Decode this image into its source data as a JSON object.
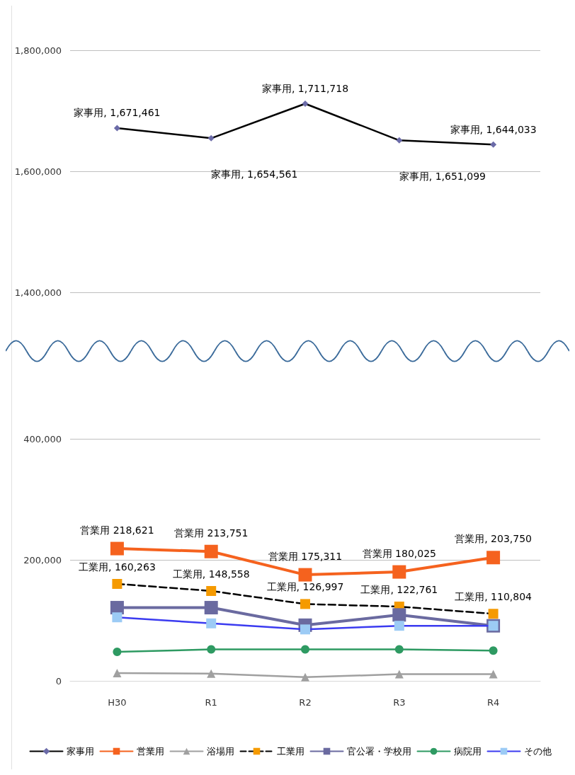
{
  "chart_data": [
    {
      "type": "line",
      "categories": [
        null,
        null,
        null,
        null,
        null
      ],
      "ylim": [
        1400000,
        1800000
      ],
      "yticks": [
        {
          "value": 1400000,
          "label": "1,400,000"
        },
        {
          "value": 1600000,
          "label": "1,600,000"
        },
        {
          "value": 1800000,
          "label": "1,800,000"
        }
      ],
      "grid": "y",
      "tick_labels": "y",
      "legend": false,
      "series": [
        {
          "color": "#000000",
          "colors": [
            "#6b6ba8",
            "#6b6ba8",
            "#6b6ba8",
            "#6b6ba8",
            "#6b6ba8"
          ],
          "marker": "diamond",
          "values": [
            1671461,
            1654561,
            1711718,
            1651099,
            1644033
          ],
          "value_labels": [
            "家事用, 1,671,461",
            "家事用, 1,654,561",
            "家事用, 1,711,718",
            "家事用, 1,651,099",
            "家事用, 1,644,033"
          ]
        }
      ]
    },
    {
      "type": "line",
      "categories": [
        "H30",
        "R1",
        "R2",
        "R3",
        "R4"
      ],
      "ylim": [
        0,
        400000
      ],
      "yticks": [
        0,
        {
          "value": 200000,
          "label": "200,000"
        },
        {
          "value": 400000,
          "label": "400,000"
        }
      ],
      "grid": "y",
      "legend": "bottom",
      "series": [
        {
          "name": "家事用",
          "color": "#000000",
          "colors": [
            "#6b6ba8",
            "#6b6ba8",
            "#6b6ba8",
            "#6b6ba8",
            "#6b6ba8"
          ],
          "marker": "diamond",
          "values": [
            null,
            null,
            null,
            null,
            null
          ]
        },
        {
          "name": "営業用",
          "color": "#f5621e",
          "marker": "square",
          "values": [
            218621,
            213751,
            175311,
            180025,
            203750
          ],
          "value_labels": [
            "営業用 218,621",
            "営業用 213,751",
            "営業用 175,311",
            "営業用 180,025",
            "営業用, 203,750"
          ]
        },
        {
          "name": "浴場用",
          "color": "#a0a0a0",
          "marker": "triangle",
          "values": [
            13000,
            12000,
            6000,
            11000,
            11000
          ]
        },
        {
          "name": "工業用",
          "color": "#000000",
          "colors": [
            "#f59a00",
            "#f59a00",
            "#f59a00",
            "#f59a00",
            "#f59a00"
          ],
          "marker": "square",
          "line_style": "dashed",
          "values": [
            160263,
            148558,
            126997,
            122761,
            110804
          ],
          "value_labels": [
            "工業用, 160,263",
            "工業用, 148,558",
            "工業用, 126,997",
            "工業用, 122,761",
            "工業用, 110,804"
          ]
        },
        {
          "name": "官公署・学校用",
          "color": "#6a6aa0",
          "marker": "square",
          "values": [
            121000,
            121000,
            92000,
            109000,
            91000
          ]
        },
        {
          "name": "病院用",
          "color": "#2e9a62",
          "marker": "circle",
          "values": [
            48000,
            52000,
            52000,
            52000,
            50000
          ]
        },
        {
          "name": "その他",
          "color": "#3b3bf0",
          "colors": [
            "#9ccbf5",
            "#9ccbf5",
            "#9ccbf5",
            "#9ccbf5",
            "#9ccbf5"
          ],
          "marker": "square",
          "values": [
            105000,
            95000,
            85000,
            91000,
            91000
          ]
        }
      ]
    }
  ]
}
